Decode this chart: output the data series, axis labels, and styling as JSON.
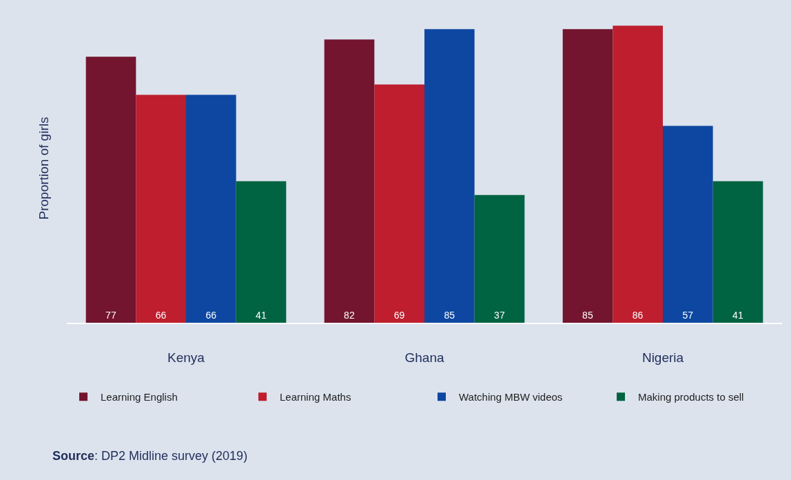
{
  "chart_data": {
    "type": "bar",
    "ylabel": "Proportion of girls",
    "categories": [
      "Kenya",
      "Ghana",
      "Nigeria"
    ],
    "series": [
      {
        "name": "Learning English",
        "color": "#73152f",
        "values": [
          77,
          82,
          85
        ]
      },
      {
        "name": "Learning Maths",
        "color": "#be1e2d",
        "values": [
          66,
          69,
          86
        ]
      },
      {
        "name": "Watching MBW videos",
        "color": "#0e47a1",
        "values": [
          66,
          85,
          57
        ]
      },
      {
        "name": "Making products to sell",
        "color": "#006341",
        "values": [
          41,
          37,
          41
        ]
      }
    ],
    "data_labels": true,
    "legend": "bottom",
    "grid": false,
    "annotations": [
      "Source: DP2 Midline survey (2019)"
    ]
  }
}
